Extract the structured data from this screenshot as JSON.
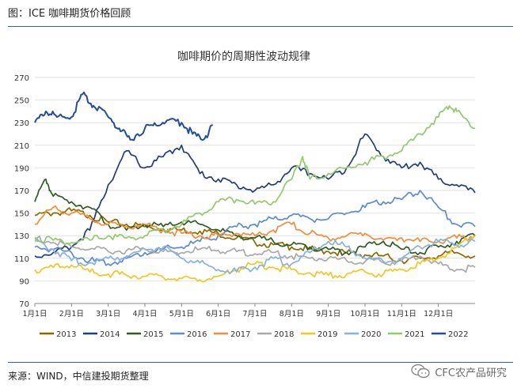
{
  "caption": "图：ICE 咖啡期货价格回顾",
  "source": "来源：WIND，中信建投期货整理",
  "watermark": "CFC农产品研究",
  "chart_data": {
    "type": "line",
    "title": "咖啡期价的周期性波动规律",
    "xlabel": "",
    "ylabel": "",
    "ylim": [
      70,
      270
    ],
    "yticks": [
      70,
      90,
      110,
      130,
      150,
      170,
      190,
      210,
      230,
      250,
      270
    ],
    "xlim": [
      1,
      13
    ],
    "xticks": [
      {
        "x": 1,
        "label": "1月1日"
      },
      {
        "x": 2,
        "label": "2月1日"
      },
      {
        "x": 3,
        "label": "3月1日"
      },
      {
        "x": 4,
        "label": "4月1日"
      },
      {
        "x": 5,
        "label": "5月1日"
      },
      {
        "x": 6,
        "label": "6月1日"
      },
      {
        "x": 7,
        "label": "7月1日"
      },
      {
        "x": 8,
        "label": "8月1日"
      },
      {
        "x": 9,
        "label": "9月1日"
      },
      {
        "x": 10,
        "label": "10月1日"
      },
      {
        "x": 11,
        "label": "11月1日"
      },
      {
        "x": 12,
        "label": "12月1日"
      }
    ],
    "legend_position": "bottom",
    "series": [
      {
        "name": "2013",
        "color": "#8a6a00",
        "x": [
          1,
          1.5,
          2,
          2.5,
          3,
          3.5,
          4,
          4.5,
          5,
          5.5,
          6,
          6.5,
          7,
          7.5,
          8,
          8.5,
          9,
          9.5,
          10,
          10.5,
          11,
          11.5,
          12,
          12.5,
          13
        ],
        "values": [
          148,
          150,
          152,
          148,
          142,
          140,
          138,
          136,
          135,
          134,
          132,
          128,
          124,
          122,
          120,
          118,
          116,
          115,
          113,
          112,
          108,
          110,
          112,
          115,
          112
        ]
      },
      {
        "name": "2014",
        "color": "#1f3f7a",
        "x": [
          1,
          1.5,
          2,
          2.5,
          3,
          3.5,
          4,
          4.5,
          5,
          5.5,
          6,
          6.5,
          7,
          7.5,
          8,
          8.5,
          9,
          9.5,
          10,
          10.5,
          11,
          11.5,
          12,
          12.5,
          13
        ],
        "values": [
          112,
          115,
          120,
          135,
          175,
          205,
          190,
          200,
          210,
          185,
          180,
          175,
          170,
          175,
          190,
          185,
          180,
          190,
          220,
          200,
          190,
          195,
          180,
          175,
          168
        ]
      },
      {
        "name": "2015",
        "color": "#2f5c24",
        "x": [
          1,
          1.3,
          1.5,
          2,
          2.5,
          3,
          3.5,
          4,
          4.5,
          5,
          5.5,
          6,
          6.5,
          7,
          7.5,
          8,
          8.5,
          9,
          9.5,
          10,
          10.5,
          11,
          11.5,
          12,
          12.5,
          13
        ],
        "values": [
          160,
          180,
          165,
          160,
          155,
          140,
          135,
          140,
          138,
          142,
          140,
          135,
          130,
          128,
          125,
          122,
          120,
          118,
          115,
          120,
          125,
          118,
          115,
          120,
          125,
          130
        ]
      },
      {
        "name": "2016",
        "color": "#5b8bd0",
        "x": [
          1,
          1.5,
          2,
          2.5,
          3,
          3.5,
          4,
          4.5,
          5,
          5.5,
          6,
          6.5,
          7,
          7.5,
          8,
          8.5,
          9,
          9.5,
          10,
          10.5,
          11,
          11.5,
          12,
          12.5,
          13
        ],
        "values": [
          120,
          118,
          115,
          108,
          105,
          110,
          115,
          118,
          120,
          125,
          130,
          138,
          140,
          145,
          148,
          145,
          145,
          150,
          155,
          160,
          162,
          170,
          155,
          140,
          138
        ]
      },
      {
        "name": "2017",
        "color": "#ee8e3a",
        "x": [
          1,
          1.5,
          2,
          2.5,
          3,
          3.5,
          4,
          4.5,
          5,
          5.5,
          6,
          6.5,
          7,
          7.5,
          8,
          8.5,
          9,
          9.5,
          10,
          10.5,
          11,
          11.5,
          12,
          12.5,
          13
        ],
        "values": [
          140,
          155,
          150,
          145,
          140,
          138,
          140,
          135,
          132,
          130,
          130,
          132,
          130,
          135,
          140,
          132,
          128,
          130,
          132,
          126,
          128,
          125,
          125,
          128,
          130
        ]
      },
      {
        "name": "2018",
        "color": "#a9a9a9",
        "x": [
          1,
          1.5,
          2,
          2.5,
          3,
          3.5,
          4,
          4.5,
          5,
          5.5,
          6,
          6.5,
          7,
          7.5,
          8,
          8.5,
          9,
          9.5,
          10,
          10.5,
          11,
          11.5,
          12,
          12.5,
          13
        ],
        "values": [
          128,
          124,
          120,
          118,
          116,
          117,
          118,
          116,
          115,
          118,
          117,
          116,
          114,
          115,
          112,
          110,
          110,
          108,
          107,
          106,
          108,
          112,
          105,
          100,
          102
        ]
      },
      {
        "name": "2019",
        "color": "#f2c624",
        "x": [
          1,
          1.5,
          2,
          2.5,
          3,
          3.5,
          4,
          4.5,
          5,
          5.5,
          6,
          6.5,
          7,
          7.5,
          8,
          8.5,
          9,
          9.5,
          10,
          10.5,
          11,
          11.5,
          12,
          12.5,
          13
        ],
        "values": [
          100,
          102,
          104,
          98,
          96,
          95,
          94,
          93,
          92,
          91,
          94,
          100,
          105,
          102,
          100,
          97,
          95,
          96,
          98,
          96,
          100,
          105,
          110,
          120,
          130
        ]
      },
      {
        "name": "2020",
        "color": "#86b2de",
        "x": [
          1,
          1.5,
          2,
          2.5,
          3,
          3.5,
          4,
          4.5,
          5,
          5.5,
          6,
          6.5,
          7,
          7.5,
          8,
          8.5,
          9,
          9.5,
          10,
          10.5,
          11,
          11.5,
          12,
          12.5,
          13
        ],
        "values": [
          125,
          118,
          108,
          106,
          110,
          112,
          118,
          120,
          110,
          106,
          100,
          98,
          102,
          110,
          105,
          115,
          125,
          120,
          110,
          107,
          110,
          120,
          125,
          122,
          125
        ]
      },
      {
        "name": "2021",
        "color": "#92c96a",
        "x": [
          1,
          1.5,
          2,
          2.5,
          3,
          3.5,
          4,
          4.5,
          5,
          5.5,
          6,
          6.5,
          7,
          7.5,
          8,
          8.3,
          8.5,
          9,
          9.5,
          10,
          10.5,
          11,
          11.5,
          12,
          12.3,
          12.5,
          13
        ],
        "values": [
          128,
          126,
          124,
          126,
          130,
          128,
          130,
          135,
          140,
          150,
          160,
          162,
          158,
          160,
          180,
          200,
          180,
          185,
          190,
          195,
          200,
          205,
          220,
          235,
          245,
          240,
          225
        ]
      },
      {
        "name": "2022",
        "color": "#234d99",
        "x": [
          1,
          1.3,
          1.6,
          2,
          2.3,
          2.6,
          3,
          3.3,
          3.6,
          4,
          4.3,
          4.6,
          5,
          5.3,
          5.6,
          5.85
        ],
        "values": [
          230,
          240,
          235,
          235,
          255,
          245,
          235,
          225,
          215,
          225,
          228,
          232,
          230,
          220,
          215,
          228
        ]
      }
    ]
  }
}
